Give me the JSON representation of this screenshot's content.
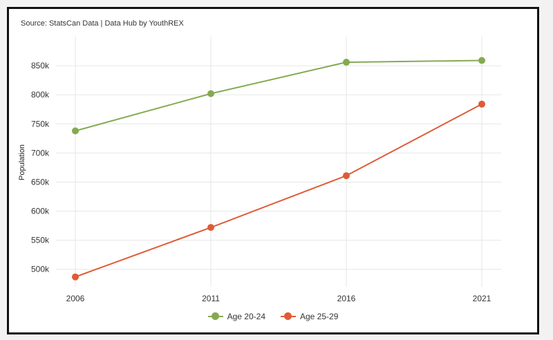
{
  "source_note": "Source: StatsCan Data | Data Hub by YouthREX",
  "chart_data": {
    "type": "line",
    "x": [
      2006,
      2011,
      2016,
      2021
    ],
    "xticks": [
      "2006",
      "2011",
      "2016",
      "2021"
    ],
    "ylabel": "Population",
    "ylim": [
      470000,
      900000
    ],
    "yticks": [
      500000,
      550000,
      600000,
      650000,
      700000,
      750000,
      800000,
      850000
    ],
    "ytick_labels": [
      "500k",
      "550k",
      "600k",
      "650k",
      "700k",
      "750k",
      "800k",
      "850k"
    ],
    "grid": true,
    "legend_position": "bottom",
    "series": [
      {
        "name": "Age 20-24",
        "color": "#83aa50",
        "values": [
          738000,
          802000,
          856000,
          859000
        ]
      },
      {
        "name": "Age 25-29",
        "color": "#e05b35",
        "values": [
          487000,
          572000,
          661000,
          784000
        ]
      }
    ]
  }
}
